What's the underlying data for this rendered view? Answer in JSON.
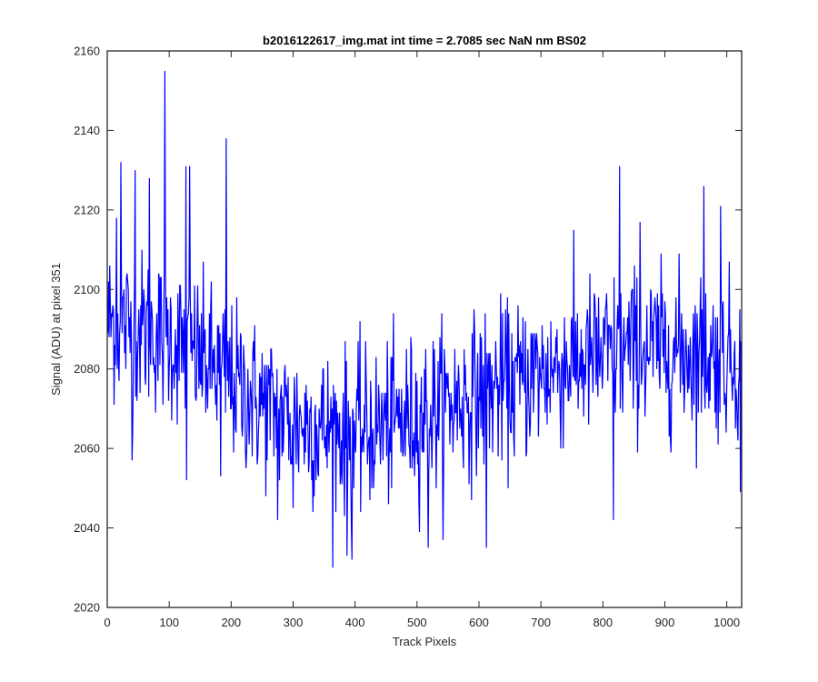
{
  "chart_data": {
    "type": "line",
    "title": "b2016122617_img.mat int time = 2.7085 sec  NaN nm BS02",
    "xlabel": "Track Pixels",
    "ylabel": "Signal (ADU) at pixel 351",
    "xlim": [
      0,
      1024
    ],
    "ylim": [
      2020,
      2160
    ],
    "xticks": [
      0,
      100,
      200,
      300,
      400,
      500,
      600,
      700,
      800,
      900,
      1000
    ],
    "yticks": [
      2020,
      2040,
      2060,
      2080,
      2100,
      2120,
      2140,
      2160
    ],
    "grid": false,
    "legend": "none",
    "series_color": "#0000ff",
    "series": [
      {
        "name": "",
        "x_start": 1,
        "x_step": 1,
        "trend": [
          [
            1,
            2092
          ],
          [
            60,
            2090
          ],
          [
            100,
            2088
          ],
          [
            150,
            2083
          ],
          [
            200,
            2077
          ],
          [
            250,
            2071
          ],
          [
            300,
            2067
          ],
          [
            350,
            2065
          ],
          [
            400,
            2064
          ],
          [
            450,
            2066
          ],
          [
            500,
            2068
          ],
          [
            550,
            2071
          ],
          [
            600,
            2074
          ],
          [
            650,
            2076
          ],
          [
            700,
            2079
          ],
          [
            750,
            2082
          ],
          [
            800,
            2083
          ],
          [
            850,
            2085
          ],
          [
            900,
            2085
          ],
          [
            950,
            2084
          ],
          [
            1000,
            2083
          ],
          [
            1024,
            2082
          ]
        ],
        "noise_sd": 10,
        "peaks": [
          [
            15,
            2118
          ],
          [
            22,
            2132
          ],
          [
            45,
            2130
          ],
          [
            68,
            2128
          ],
          [
            93,
            2155
          ],
          [
            127,
            2131
          ],
          [
            133,
            2131
          ],
          [
            192,
            2138
          ],
          [
            827,
            2131
          ],
          [
            860,
            2117
          ],
          [
            963,
            2126
          ],
          [
            990,
            2121
          ]
        ],
        "troughs": [
          [
            40,
            2057
          ],
          [
            128,
            2052
          ],
          [
            183,
            2053
          ],
          [
            275,
            2042
          ],
          [
            300,
            2045
          ],
          [
            387,
            2033
          ],
          [
            395,
            2032
          ],
          [
            518,
            2035
          ],
          [
            612,
            2035
          ],
          [
            817,
            2042
          ],
          [
            1022,
            2049
          ]
        ]
      }
    ]
  }
}
